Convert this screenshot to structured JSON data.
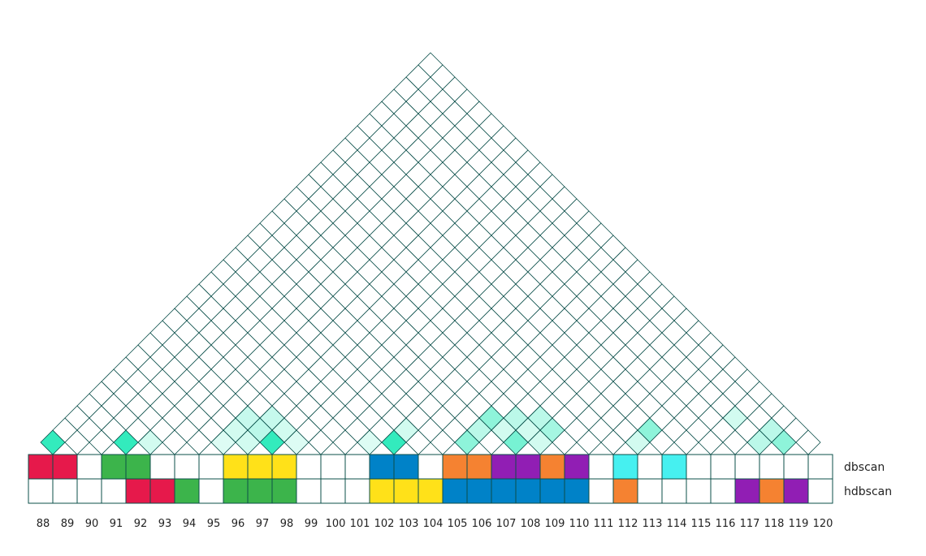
{
  "chart_data": {
    "type": "heatmap",
    "description_free": true,
    "indices": [
      88,
      89,
      90,
      91,
      92,
      93,
      94,
      95,
      96,
      97,
      98,
      99,
      100,
      101,
      102,
      103,
      104,
      105,
      106,
      107,
      108,
      109,
      110,
      111,
      112,
      113,
      114,
      115,
      116,
      117,
      118,
      119,
      120
    ],
    "rows": [
      {
        "name": "dbscan",
        "clusters": [
          "red",
          "red",
          "none",
          "green",
          "green",
          "none",
          "none",
          "none",
          "yellow",
          "yellow",
          "yellow",
          "none",
          "none",
          "none",
          "blue",
          "blue",
          "none",
          "orange",
          "orange",
          "purple",
          "purple",
          "orange",
          "purple",
          "none",
          "cyan",
          "none",
          "cyan",
          "none",
          "none",
          "none",
          "none",
          "none",
          "none"
        ]
      },
      {
        "name": "hdbscan",
        "clusters": [
          "none",
          "none",
          "none",
          "none",
          "red",
          "red",
          "green",
          "none",
          "green",
          "green",
          "green",
          "none",
          "none",
          "none",
          "yellow",
          "yellow",
          "yellow",
          "blue",
          "blue",
          "blue",
          "blue",
          "blue",
          "blue",
          "none",
          "orange",
          "none",
          "none",
          "none",
          "none",
          "purple",
          "orange",
          "purple",
          "none"
        ]
      }
    ],
    "palette": {
      "red": "#e6194b",
      "green": "#3cb44b",
      "yellow": "#ffe119",
      "blue": "#0082c8",
      "orange": "#f58231",
      "purple": "#911eb4",
      "cyan": "#46f0f0",
      "none": "#ffffff"
    },
    "pair_matrix_color": "#1de9b6",
    "pair_matrix_border": "#0b4f4a",
    "pair_matrix": [
      {
        "i": 88,
        "j": 88,
        "v": 0.9
      },
      {
        "i": 91,
        "j": 91,
        "v": 0.9
      },
      {
        "i": 92,
        "j": 92,
        "v": 0.2
      },
      {
        "i": 95,
        "j": 95,
        "v": 0.15
      },
      {
        "i": 95,
        "j": 96,
        "v": 0.2
      },
      {
        "i": 95,
        "j": 97,
        "v": 0.25
      },
      {
        "i": 96,
        "j": 96,
        "v": 0.2
      },
      {
        "i": 96,
        "j": 97,
        "v": 0.3
      },
      {
        "i": 97,
        "j": 97,
        "v": 0.9
      },
      {
        "i": 96,
        "j": 98,
        "v": 0.25
      },
      {
        "i": 97,
        "j": 98,
        "v": 0.2
      },
      {
        "i": 98,
        "j": 98,
        "v": 0.15
      },
      {
        "i": 101,
        "j": 101,
        "v": 0.15
      },
      {
        "i": 102,
        "j": 102,
        "v": 0.9
      },
      {
        "i": 102,
        "j": 103,
        "v": 0.2
      },
      {
        "i": 105,
        "j": 105,
        "v": 0.5
      },
      {
        "i": 105,
        "j": 106,
        "v": 0.3
      },
      {
        "i": 105,
        "j": 107,
        "v": 0.5
      },
      {
        "i": 106,
        "j": 107,
        "v": 0.2
      },
      {
        "i": 107,
        "j": 107,
        "v": 0.6
      },
      {
        "i": 107,
        "j": 108,
        "v": 0.2
      },
      {
        "i": 106,
        "j": 108,
        "v": 0.3
      },
      {
        "i": 107,
        "j": 109,
        "v": 0.3
      },
      {
        "i": 108,
        "j": 109,
        "v": 0.4
      },
      {
        "i": 108,
        "j": 108,
        "v": 0.2
      },
      {
        "i": 112,
        "j": 112,
        "v": 0.2
      },
      {
        "i": 112,
        "j": 113,
        "v": 0.5
      },
      {
        "i": 115,
        "j": 117,
        "v": 0.2
      },
      {
        "i": 117,
        "j": 117,
        "v": 0.3
      },
      {
        "i": 117,
        "j": 118,
        "v": 0.3
      },
      {
        "i": 118,
        "j": 118,
        "v": 0.5
      }
    ]
  }
}
